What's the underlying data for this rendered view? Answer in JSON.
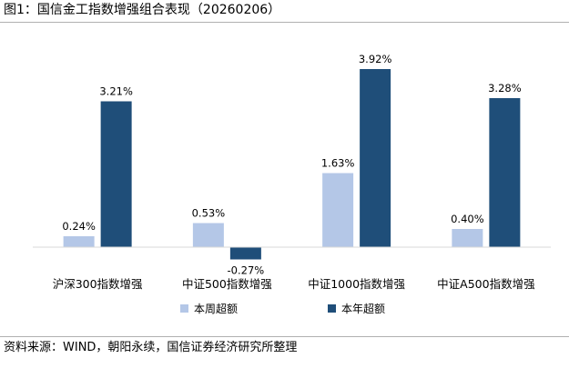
{
  "figure": {
    "title": "图1：国信金工指数增强组合表现（20260206）",
    "source": "资料来源：WIND，朝阳永续，国信证券经济研究所整理"
  },
  "colors": {
    "weekly": "#b4c7e7",
    "yearly": "#1f4e79",
    "axis": "#d9d9d9"
  },
  "chart_data": {
    "type": "bar",
    "categories": [
      "沪深300指数增强",
      "中证500指数增强",
      "中证1000指数增强",
      "中证A500指数增强"
    ],
    "series": [
      {
        "name": "本周超额",
        "values": [
          0.24,
          0.53,
          1.63,
          0.4
        ],
        "labels": [
          "0.24%",
          "0.53%",
          "1.63%",
          "0.40%"
        ]
      },
      {
        "name": "本年超额",
        "values": [
          3.21,
          -0.27,
          3.92,
          3.28
        ],
        "labels": [
          "3.21%",
          "-0.27%",
          "3.92%",
          "3.28%"
        ]
      }
    ],
    "unit": "%",
    "ylim": [
      -0.5,
      4.2
    ],
    "grid": false,
    "legend": "bottom"
  }
}
